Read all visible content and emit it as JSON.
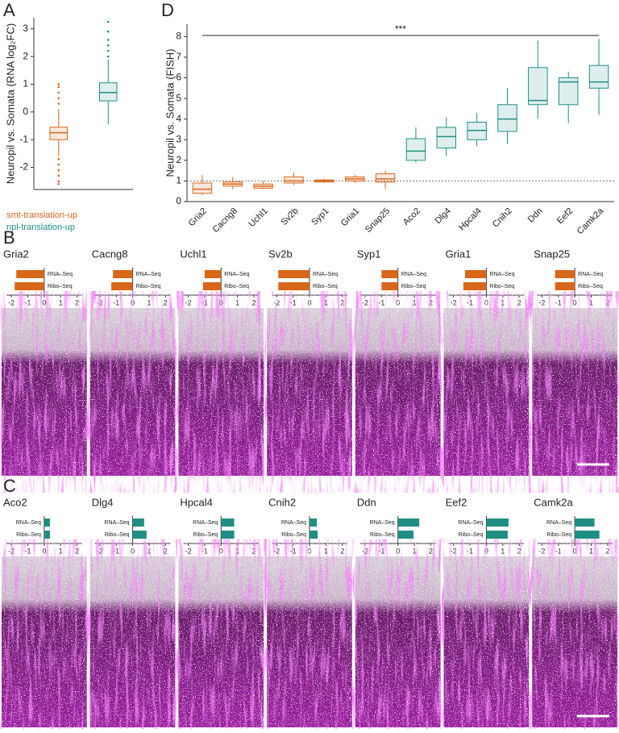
{
  "chart_data": [
    {
      "type": "box",
      "panel": "A",
      "ylabel": "Neuropil vs. Somata (RNA log₂FC)",
      "legend": "bottom",
      "categories": [
        "smt-translation-up",
        "npl-translation-up"
      ],
      "colors": [
        "#d9671a",
        "#1f8f85"
      ],
      "boxes": [
        {
          "low": -1.6,
          "q1": -1.0,
          "median": -0.75,
          "q3": -0.55,
          "high": 0.1,
          "outliers": [
            -1.7,
            -1.9,
            -2.1,
            -2.3,
            -2.5,
            -2.6,
            0.3,
            0.5,
            0.7,
            0.9,
            1.0
          ]
        },
        {
          "low": -0.45,
          "q1": 0.4,
          "median": 0.7,
          "q3": 1.05,
          "high": 1.9,
          "outliers": [
            2.0,
            2.2,
            2.4,
            2.6,
            2.9,
            3.25
          ]
        }
      ],
      "ylim": [
        -2.8,
        3.4
      ],
      "yticks": [
        -2,
        -1,
        0,
        1,
        2,
        3
      ]
    },
    {
      "type": "box",
      "panel": "D",
      "ylabel": "Neuropil vs. Somata (FISH)",
      "annotation": "***",
      "reference_line": 1,
      "categories": [
        "Gria2",
        "Cacng8",
        "Uchl1",
        "Sv2b",
        "Syp1",
        "Gria1",
        "Snap25",
        "Aco2",
        "Dlg4",
        "Hpcal4",
        "Cnih2",
        "Ddn",
        "Eef2",
        "Camk2a"
      ],
      "colors": [
        "#d9671a",
        "#d9671a",
        "#d9671a",
        "#d9671a",
        "#d9671a",
        "#d9671a",
        "#d9671a",
        "#1f8f85",
        "#1f8f85",
        "#1f8f85",
        "#1f8f85",
        "#1f8f85",
        "#1f8f85",
        "#1f8f85"
      ],
      "boxes": [
        {
          "low": 0.3,
          "q1": 0.4,
          "median": 0.6,
          "q3": 0.9,
          "high": 1.3
        },
        {
          "low": 0.6,
          "q1": 0.75,
          "median": 0.85,
          "q3": 0.95,
          "high": 1.2
        },
        {
          "low": 0.6,
          "q1": 0.65,
          "median": 0.75,
          "q3": 0.85,
          "high": 1.0
        },
        {
          "low": 0.8,
          "q1": 0.9,
          "median": 1.0,
          "q3": 1.2,
          "high": 1.4
        },
        {
          "low": 0.9,
          "q1": 0.95,
          "median": 1.0,
          "q3": 1.05,
          "high": 1.1
        },
        {
          "low": 0.9,
          "q1": 1.0,
          "median": 1.1,
          "q3": 1.2,
          "high": 1.3
        },
        {
          "low": 0.6,
          "q1": 0.95,
          "median": 1.1,
          "q3": 1.35,
          "high": 1.5
        },
        {
          "low": 1.9,
          "q1": 2.0,
          "median": 2.45,
          "q3": 3.05,
          "high": 3.6
        },
        {
          "low": 2.2,
          "q1": 2.6,
          "median": 3.15,
          "q3": 3.6,
          "high": 4.1
        },
        {
          "low": 2.7,
          "q1": 3.0,
          "median": 3.45,
          "q3": 3.85,
          "high": 4.3
        },
        {
          "low": 2.8,
          "q1": 3.4,
          "median": 4.0,
          "q3": 4.7,
          "high": 5.5
        },
        {
          "low": 4.0,
          "q1": 4.7,
          "median": 4.9,
          "q3": 6.5,
          "high": 7.8
        },
        {
          "low": 3.8,
          "q1": 4.7,
          "median": 5.8,
          "q3": 6.0,
          "high": 6.3
        },
        {
          "low": 4.2,
          "q1": 5.5,
          "median": 5.8,
          "q3": 6.6,
          "high": 7.9
        }
      ],
      "ylim": [
        0,
        8.6
      ],
      "yticks": [
        0,
        1,
        2,
        3,
        4,
        5,
        6,
        7,
        8
      ]
    },
    {
      "type": "hbar",
      "panel": "B",
      "color": "#d9671a",
      "row_labels": [
        "RNA–Seq",
        "Ribo–Seq"
      ],
      "genes": [
        "Gria2",
        "Cacng8",
        "Uchl1",
        "Sv2b",
        "Syp1",
        "Gria1",
        "Snap25"
      ],
      "values": [
        [
          -1.7,
          -1.8
        ],
        [
          -1.2,
          -1.3
        ],
        [
          -1.0,
          -1.1
        ],
        [
          -1.9,
          -1.9
        ],
        [
          -1.0,
          -1.0
        ],
        [
          -1.3,
          -1.4
        ],
        [
          -1.2,
          -1.2
        ]
      ],
      "xlim": [
        -2.3,
        2.3
      ],
      "xticks": [
        -2,
        -1,
        0,
        1,
        2
      ]
    },
    {
      "type": "hbar",
      "panel": "C",
      "color": "#1f8f85",
      "row_labels": [
        "RNA–Seq",
        "Ribo–Seq"
      ],
      "genes": [
        "Aco2",
        "Dlg4",
        "Hpcal4",
        "Cnih2",
        "Ddn",
        "Eef2",
        "Camk2a"
      ],
      "values": [
        [
          0.35,
          0.35
        ],
        [
          0.7,
          0.85
        ],
        [
          0.8,
          0.8
        ],
        [
          0.45,
          0.5
        ],
        [
          1.3,
          0.95
        ],
        [
          1.35,
          1.3
        ],
        [
          1.2,
          1.5
        ]
      ],
      "xlim": [
        -2.3,
        2.3
      ],
      "xticks": [
        -2,
        -1,
        0,
        1,
        2
      ]
    }
  ]
}
